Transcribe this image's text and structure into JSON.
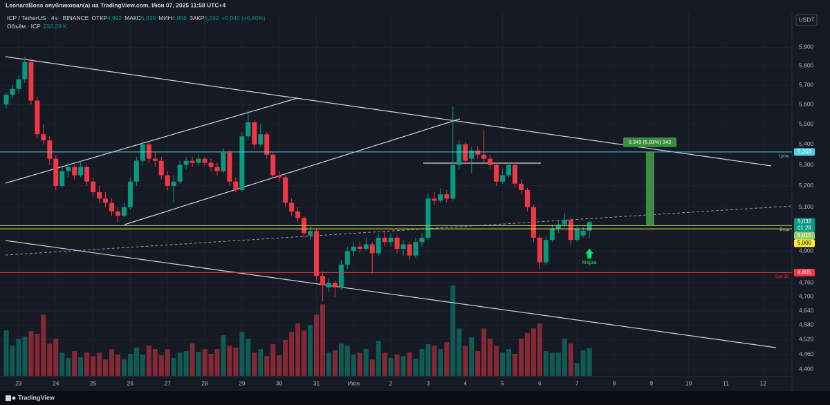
{
  "header": {
    "publisher": "LeonardBoss опубликовал(а) на TradingView.com, Июн 07, 2025 11:58 UTC+4",
    "symbol": "ICP / TetherUS · 4ч · BINANCE",
    "open_label": "ОТКР",
    "open": "4,992",
    "high_label": "МАКС",
    "high": "5,039",
    "low_label": "МИН",
    "low": "4,958",
    "close_label": "ЗАКР",
    "close": "5,032",
    "change": "+0,040 (+0,80%)",
    "volume_label": "Объём · ICP",
    "volume": "233,29 K",
    "currency": "USDT"
  },
  "footer": {
    "brand": "TradingView"
  },
  "chart_data": {
    "type": "candlestick",
    "log_scale": true,
    "grid": true,
    "up_color": "#089981",
    "down_color": "#f23645",
    "categories": [
      null,
      null,
      "23",
      null,
      null,
      null,
      null,
      null,
      "24",
      null,
      null,
      null,
      null,
      null,
      "25",
      null,
      null,
      null,
      null,
      null,
      "26",
      null,
      null,
      null,
      null,
      null,
      "27",
      null,
      null,
      null,
      null,
      null,
      "28",
      null,
      null,
      null,
      null,
      null,
      "29",
      null,
      null,
      null,
      null,
      null,
      "30",
      null,
      null,
      null,
      null,
      null,
      "31",
      null,
      null,
      null,
      null,
      null,
      "Июн",
      null,
      null,
      null,
      null,
      null,
      "2",
      null,
      null,
      null,
      null,
      null,
      "3",
      null,
      null,
      null,
      null,
      null,
      "4",
      null,
      null,
      null,
      null,
      null,
      "5",
      null,
      null,
      null,
      null,
      null,
      "6",
      null,
      null,
      null,
      null,
      null,
      "7",
      null,
      null,
      null,
      null,
      null,
      "8",
      null,
      null,
      null,
      null,
      null,
      "9",
      null,
      null,
      null,
      null,
      null,
      "10",
      null,
      null,
      null,
      null,
      null,
      "11",
      null,
      null,
      null,
      null,
      null,
      "12",
      null,
      null,
      null
    ],
    "open": [
      5.6,
      5.65,
      5.68,
      5.73,
      5.82,
      5.62,
      5.45,
      5.42,
      5.33,
      5.2,
      5.27,
      5.29,
      5.25,
      5.29,
      5.22,
      5.17,
      5.14,
      5.12,
      5.08,
      5.06,
      5.1,
      5.22,
      5.32,
      5.4,
      5.33,
      5.32,
      5.25,
      5.2,
      5.22,
      5.3,
      5.32,
      5.31,
      5.33,
      5.31,
      5.29,
      5.27,
      5.36,
      5.22,
      5.18,
      5.44,
      5.51,
      5.4,
      5.45,
      5.35,
      5.25,
      5.24,
      5.12,
      5.08,
      5.05,
      4.97,
      4.99,
      4.79,
      4.74,
      4.76,
      4.74,
      4.84,
      4.9,
      4.92,
      4.91,
      4.93,
      4.89,
      4.96,
      4.94,
      4.96,
      4.91,
      4.93,
      4.88,
      4.94,
      4.96,
      5.14,
      5.13,
      5.16,
      5.14,
      5.3,
      5.4,
      5.33,
      5.37,
      5.35,
      5.33,
      5.3,
      5.22,
      5.25,
      5.3,
      5.21,
      5.18,
      5.1,
      4.96,
      4.85,
      4.95,
      5.0,
      5.02,
      5.04,
      4.95,
      4.97,
      4.992,
      null,
      null,
      null,
      null,
      null,
      null,
      null,
      null,
      null,
      null,
      null,
      null,
      null,
      null,
      null,
      null,
      null,
      null,
      null,
      null,
      null,
      null,
      null,
      null,
      null,
      null,
      null,
      null,
      null,
      null,
      null
    ],
    "high": [
      5.66,
      5.7,
      5.75,
      5.85,
      5.84,
      5.64,
      5.5,
      5.44,
      5.35,
      5.29,
      5.31,
      5.3,
      5.32,
      5.3,
      5.24,
      5.2,
      5.17,
      5.14,
      5.1,
      5.12,
      5.24,
      5.34,
      5.42,
      5.41,
      5.36,
      5.34,
      5.27,
      5.25,
      5.32,
      5.34,
      5.34,
      5.35,
      5.34,
      5.33,
      5.31,
      5.38,
      5.37,
      5.24,
      5.46,
      5.57,
      5.52,
      5.5,
      5.46,
      5.36,
      5.27,
      5.25,
      5.14,
      5.1,
      5.06,
      5.01,
      5.0,
      4.81,
      4.78,
      4.77,
      4.86,
      4.92,
      4.94,
      4.94,
      4.96,
      4.94,
      4.98,
      4.99,
      4.98,
      4.97,
      4.95,
      4.94,
      4.96,
      4.98,
      5.16,
      5.17,
      5.19,
      5.18,
      5.59,
      5.42,
      5.41,
      5.39,
      5.39,
      5.47,
      5.35,
      5.31,
      5.28,
      5.31,
      5.31,
      5.23,
      5.19,
      5.11,
      4.97,
      4.97,
      5.02,
      5.04,
      5.07,
      5.05,
      5.02,
      5.01,
      5.039,
      null,
      null,
      null,
      null,
      null,
      null,
      null,
      null,
      null,
      null,
      null,
      null,
      null,
      null,
      null,
      null,
      null,
      null,
      null,
      null,
      null,
      null,
      null,
      null,
      null,
      null,
      null,
      null,
      null,
      null,
      null
    ],
    "low": [
      5.58,
      5.63,
      5.66,
      5.71,
      5.6,
      5.43,
      5.4,
      5.3,
      5.18,
      5.19,
      5.24,
      5.23,
      5.24,
      5.2,
      5.15,
      5.12,
      5.1,
      5.06,
      5.03,
      5.05,
      5.09,
      5.2,
      5.3,
      5.31,
      5.29,
      5.23,
      5.18,
      5.12,
      5.21,
      5.28,
      5.29,
      5.3,
      5.29,
      5.27,
      5.25,
      5.26,
      5.2,
      5.17,
      5.17,
      5.42,
      5.38,
      5.39,
      5.33,
      5.24,
      5.22,
      5.1,
      5.06,
      5.03,
      4.96,
      4.95,
      4.77,
      4.68,
      4.72,
      4.7,
      4.73,
      4.82,
      4.88,
      4.89,
      4.9,
      4.8,
      4.88,
      4.92,
      4.92,
      4.89,
      4.88,
      4.86,
      4.87,
      4.92,
      4.95,
      5.11,
      5.12,
      5.12,
      5.13,
      5.28,
      5.3,
      5.26,
      5.33,
      5.31,
      5.28,
      5.2,
      5.21,
      5.24,
      5.19,
      5.16,
      5.08,
      4.94,
      4.82,
      4.84,
      4.94,
      4.98,
      5.01,
      4.93,
      4.94,
      4.96,
      4.958,
      null,
      null,
      null,
      null,
      null,
      null,
      null,
      null,
      null,
      null,
      null,
      null,
      null,
      null,
      null,
      null,
      null,
      null,
      null,
      null,
      null,
      null,
      null,
      null,
      null,
      null,
      null,
      null,
      null,
      null,
      null
    ],
    "close": [
      5.65,
      5.68,
      5.73,
      5.82,
      5.62,
      5.45,
      5.42,
      5.33,
      5.2,
      5.27,
      5.29,
      5.25,
      5.29,
      5.22,
      5.17,
      5.14,
      5.12,
      5.08,
      5.06,
      5.1,
      5.22,
      5.32,
      5.4,
      5.33,
      5.32,
      5.25,
      5.2,
      5.22,
      5.3,
      5.32,
      5.31,
      5.33,
      5.31,
      5.29,
      5.27,
      5.36,
      5.22,
      5.18,
      5.44,
      5.51,
      5.4,
      5.45,
      5.35,
      5.25,
      5.24,
      5.12,
      5.08,
      5.05,
      4.98,
      4.99,
      4.79,
      4.75,
      4.76,
      4.74,
      4.84,
      4.9,
      4.92,
      4.91,
      4.93,
      4.89,
      4.96,
      4.94,
      4.96,
      4.91,
      4.93,
      4.88,
      4.94,
      4.96,
      5.14,
      5.13,
      5.16,
      5.14,
      5.3,
      5.4,
      5.32,
      5.37,
      5.35,
      5.33,
      5.3,
      5.22,
      5.25,
      5.3,
      5.21,
      5.18,
      5.1,
      4.96,
      4.85,
      4.95,
      5.0,
      5.02,
      5.04,
      4.95,
      5.0,
      4.992,
      5.032,
      null,
      null,
      null,
      null,
      null,
      null,
      null,
      null,
      null,
      null,
      null,
      null,
      null,
      null,
      null,
      null,
      null,
      null,
      null,
      null,
      null,
      null,
      null,
      null,
      null,
      null,
      null,
      null,
      null,
      null,
      null
    ],
    "volume": [
      383,
      255,
      313,
      331,
      377,
      354,
      516,
      273,
      313,
      197,
      151,
      209,
      157,
      197,
      168,
      197,
      139,
      226,
      180,
      139,
      186,
      238,
      180,
      255,
      226,
      174,
      226,
      151,
      197,
      209,
      273,
      203,
      226,
      186,
      226,
      342,
      255,
      238,
      371,
      313,
      197,
      226,
      168,
      267,
      174,
      302,
      371,
      441,
      383,
      429,
      516,
      603,
      197,
      215,
      273,
      255,
      180,
      197,
      226,
      139,
      296,
      197,
      151,
      180,
      168,
      197,
      145,
      226,
      267,
      255,
      226,
      284,
      760,
      400,
      255,
      325,
      209,
      400,
      313,
      255,
      197,
      226,
      186,
      313,
      360,
      400,
      441,
      209,
      197,
      197,
      313,
      273,
      110,
      215,
      233.29,
      null,
      null,
      null,
      null,
      null,
      null,
      null,
      null,
      null,
      null,
      null,
      null,
      null,
      null,
      null,
      null,
      null,
      null,
      null,
      null,
      null,
      null,
      null,
      null,
      null,
      null,
      null,
      null,
      null,
      null,
      null
    ],
    "ylim": [
      4.37,
      6.09
    ],
    "yticks": [
      {
        "value": 5.9,
        "label": "5,900"
      },
      {
        "value": 5.8,
        "label": "5,800"
      },
      {
        "value": 5.7,
        "label": "5,700"
      },
      {
        "value": 5.6,
        "label": "5,600"
      },
      {
        "value": 5.5,
        "label": "5,500"
      },
      {
        "value": 5.4,
        "label": "5,400"
      },
      {
        "value": 5.3,
        "label": "5,300"
      },
      {
        "value": 5.2,
        "label": "5,200"
      },
      {
        "value": 5.1,
        "label": "5,100"
      },
      {
        "value": 4.9,
        "label": "4,900"
      },
      {
        "value": 4.76,
        "label": "4,760"
      },
      {
        "value": 4.7,
        "label": "4,700"
      },
      {
        "value": 4.64,
        "label": "4,640"
      },
      {
        "value": 4.58,
        "label": "4,580"
      },
      {
        "value": 4.52,
        "label": "4,520"
      },
      {
        "value": 4.46,
        "label": "4,460"
      },
      {
        "value": 4.4,
        "label": "4,400"
      }
    ],
    "levels": [
      {
        "value": 5.363,
        "label": "5,363",
        "name": "Цель",
        "color": "#4dd0e1"
      },
      {
        "value": 5.015,
        "label": "5,015",
        "name": "Вход",
        "color": "#9ccc65"
      },
      {
        "value": 5.0,
        "label": "5,000",
        "color": "#ffeb3b"
      },
      {
        "value": 4.805,
        "label": "4,805",
        "name": "Суп 1D",
        "color": "#f23645"
      }
    ],
    "price_tag": {
      "value": 5.032,
      "label": "5,032",
      "countdown": "01:28"
    },
    "measure": {
      "label": "0,343 (6,83%) 343"
    },
    "marker": {
      "label": "Марка"
    }
  }
}
